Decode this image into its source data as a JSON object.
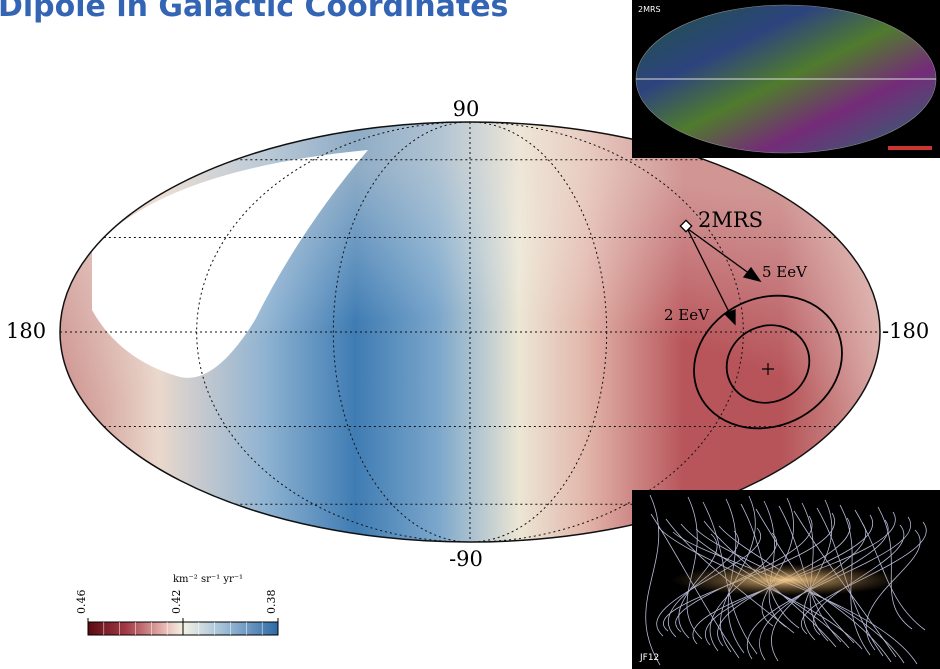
{
  "header": {
    "title": "Dipole in Galactic Coordinates"
  },
  "map": {
    "lat_top": "90",
    "lat_bottom": "-90",
    "lon_left": "180",
    "lon_right": "-180",
    "labels": {
      "catalog": "2MRS",
      "energy_high": "5 EeV",
      "energy_low": "2 EeV"
    }
  },
  "colorbar": {
    "unit": "km⁻² sr⁻¹ yr⁻¹",
    "ticks": [
      "0.46",
      "0.42",
      "0.38"
    ]
  },
  "insets": {
    "top": "2MRS",
    "bottom": "JF12"
  }
}
